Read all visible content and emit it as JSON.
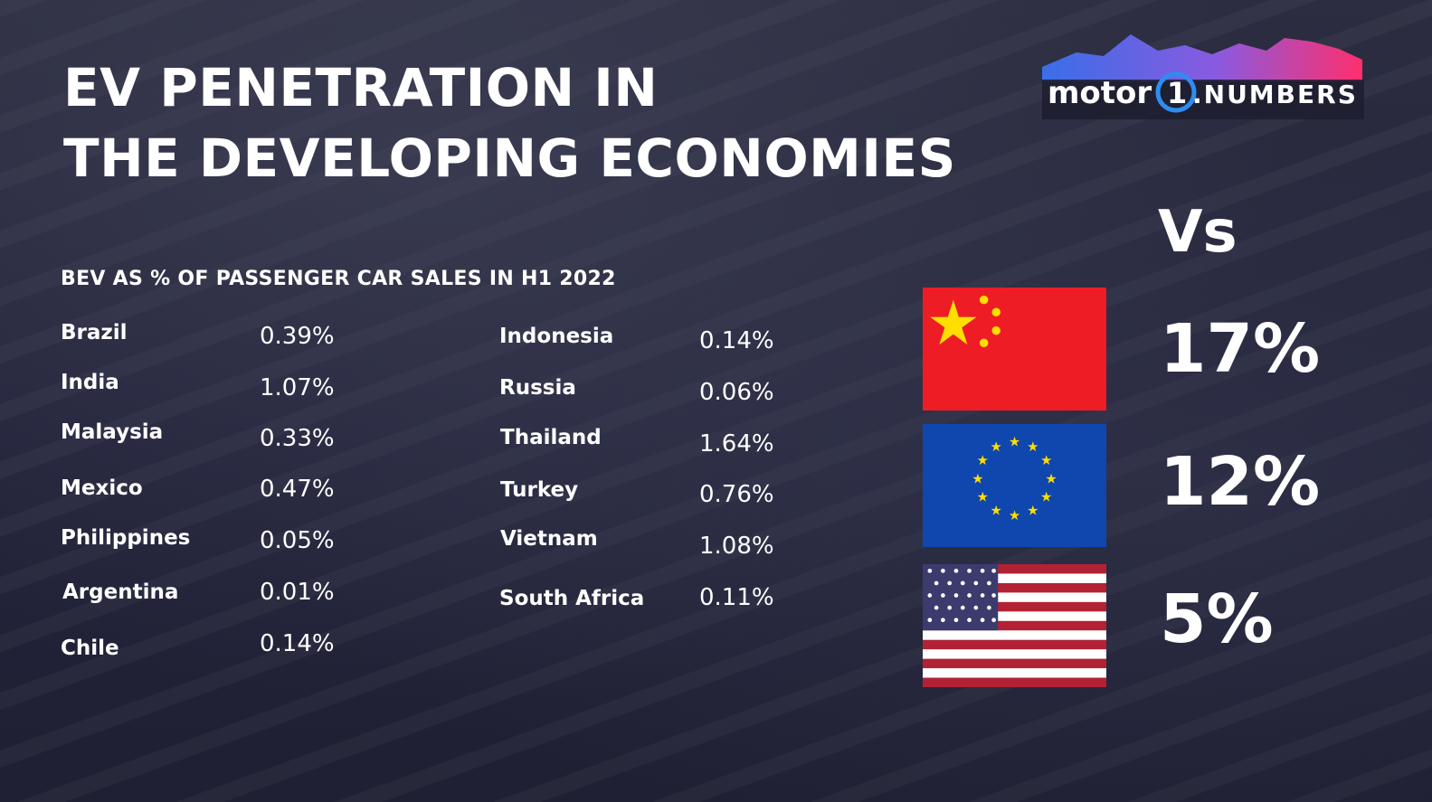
{
  "header": {
    "title_line1": "EV PENETRATION IN",
    "title_line2": "THE DEVELOPING ECONOMIES",
    "logo_text_motor": "motor",
    "logo_text_one": "1",
    "logo_text_numbers": ".NUMBERS"
  },
  "chart_data": {
    "type": "table",
    "title": "BEV AS % OF PASSENGER CAR SALES IN H1 2022",
    "columns": [
      {
        "rows": [
          {
            "country": "Brazil",
            "value": "0.39%"
          },
          {
            "country": "India",
            "value": "1.07%"
          },
          {
            "country": "Malaysia",
            "value": "0.33%"
          },
          {
            "country": "Mexico",
            "value": "0.47%"
          },
          {
            "country": "Philippines",
            "value": "0.05%"
          },
          {
            "country": "Argentina",
            "value": "0.01%"
          },
          {
            "country": "Chile",
            "value": "0.14%"
          }
        ]
      },
      {
        "rows": [
          {
            "country": "Indonesia",
            "value": "0.14%"
          },
          {
            "country": "Russia",
            "value": "0.06%"
          },
          {
            "country": "Thailand",
            "value": "1.64%"
          },
          {
            "country": "Turkey",
            "value": "0.76%"
          },
          {
            "country": "Vietnam",
            "value": "1.08%"
          },
          {
            "country": "South Africa",
            "value": "0.11%"
          }
        ]
      }
    ],
    "comparison": {
      "label": "Vs",
      "items": [
        {
          "flag": "china-flag",
          "value": "17%"
        },
        {
          "flag": "eu-flag",
          "value": "12%"
        },
        {
          "flag": "us-flag",
          "value": "5%"
        }
      ]
    }
  },
  "colors": {
    "background": "#242537",
    "text": "#ffffff",
    "china_red": "#ee1c25",
    "china_yellow": "#ffde00",
    "eu_blue": "#0f47af",
    "eu_yellow": "#ffdd00",
    "us_red": "#b22234",
    "us_blue": "#3c3b6e"
  }
}
